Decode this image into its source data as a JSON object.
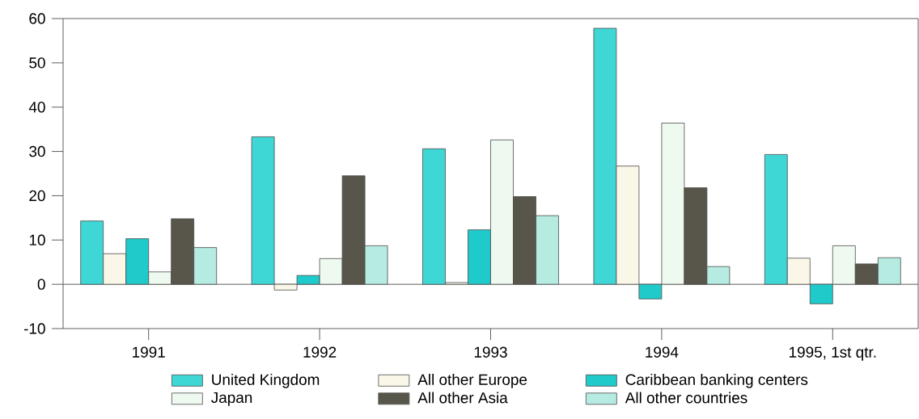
{
  "chart_data": {
    "type": "bar",
    "categories": [
      "1991",
      "1992",
      "1993",
      "1994",
      "1995, 1st qtr."
    ],
    "series": [
      {
        "name": "United Kingdom",
        "color": "#3fd6d6",
        "values": [
          14.3,
          33.3,
          30.6,
          57.8,
          29.3
        ]
      },
      {
        "name": "All other Europe",
        "color": "#faf7e8",
        "values": [
          6.9,
          -1.3,
          0.4,
          26.7,
          5.9
        ]
      },
      {
        "name": "Caribbean banking centers",
        "color": "#1fcaca",
        "values": [
          10.3,
          2.0,
          12.3,
          -3.3,
          -4.4
        ]
      },
      {
        "name": "Japan",
        "color": "#eef9f0",
        "values": [
          2.8,
          5.8,
          32.6,
          36.4,
          8.7
        ]
      },
      {
        "name": "All other Asia",
        "color": "#58564a",
        "values": [
          14.8,
          24.5,
          19.8,
          21.8,
          4.6
        ]
      },
      {
        "name": "All other countries",
        "color": "#b5ebe0",
        "values": [
          8.3,
          8.7,
          15.5,
          4.0,
          6.0
        ]
      }
    ],
    "ylim": [
      -10,
      60
    ],
    "yticks": [
      -10,
      0,
      10,
      20,
      30,
      40,
      50,
      60
    ],
    "ref_lines": [
      {
        "axis": "y",
        "value": 0
      }
    ],
    "legend": "bottom"
  }
}
